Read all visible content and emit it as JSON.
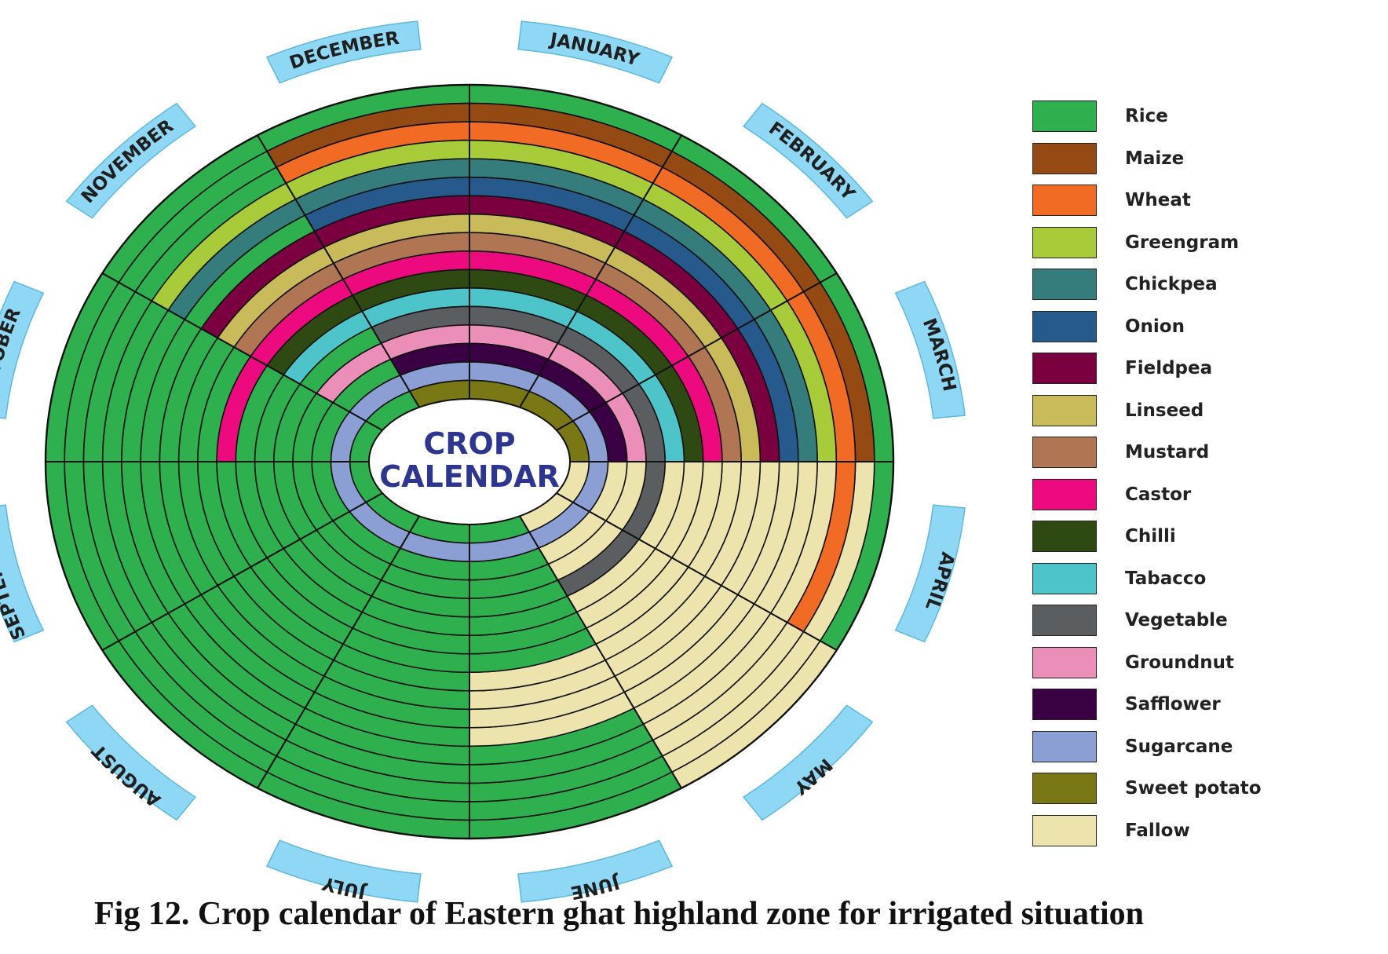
{
  "chart_data": {
    "type": "radial-calendar",
    "title": "Fig 12. Crop calendar of Eastern ghat highland zone for irrigated situation",
    "center_label": [
      "CROP",
      "CALENDAR"
    ],
    "months": [
      "JANUARY",
      "FEBRUARY",
      "MARCH",
      "APRIL",
      "MAY",
      "JUNE",
      "JULY",
      "AUGUST",
      "SEPTEMBER",
      "OCTOBER",
      "NOVEMBER",
      "DECEMBER"
    ],
    "crops": [
      {
        "name": "Rice",
        "color": "#2db04d"
      },
      {
        "name": "Maize",
        "color": "#944a12"
      },
      {
        "name": "Wheat",
        "color": "#f26b25"
      },
      {
        "name": "Greengram",
        "color": "#a8cb3a"
      },
      {
        "name": "Chickpea",
        "color": "#347d7c"
      },
      {
        "name": "Onion",
        "color": "#275a8c"
      },
      {
        "name": "Fieldpea",
        "color": "#7a0040"
      },
      {
        "name": "Linseed",
        "color": "#c9bb5a"
      },
      {
        "name": "Mustard",
        "color": "#b07553"
      },
      {
        "name": "Castor",
        "color": "#ec0a7e"
      },
      {
        "name": "Chilli",
        "color": "#2e4a12"
      },
      {
        "name": "Tabacco",
        "color": "#4cc4c9"
      },
      {
        "name": "Vegetable",
        "color": "#5a5e60"
      },
      {
        "name": "Groundnut",
        "color": "#eb8fb8"
      },
      {
        "name": "Safflower",
        "color": "#3b0044"
      },
      {
        "name": "Sugarcane",
        "color": "#8b9fd4"
      },
      {
        "name": "Sweet potato",
        "color": "#7a7814"
      },
      {
        "name": "Fallow",
        "color": "#ede4ad"
      }
    ],
    "rings_outer_to_inner": [
      [
        "Rice",
        "Rice",
        "Rice",
        "Rice",
        "Fallow",
        "Rice",
        "Rice",
        "Rice",
        "Rice",
        "Rice",
        "Rice",
        "Rice"
      ],
      [
        "Maize",
        "Maize",
        "Maize",
        "Fallow",
        "Fallow",
        "Rice",
        "Rice",
        "Rice",
        "Rice",
        "Rice",
        "Rice",
        "Maize"
      ],
      [
        "Wheat",
        "Wheat",
        "Wheat",
        "Wheat",
        "Fallow",
        "Rice",
        "Rice",
        "Rice",
        "Rice",
        "Rice",
        "Rice",
        "Wheat"
      ],
      [
        "Greengram",
        "Greengram",
        "Greengram",
        "Fallow",
        "Fallow",
        "Rice",
        "Rice",
        "Rice",
        "Rice",
        "Rice",
        "Greengram",
        "Greengram"
      ],
      [
        "Chickpea",
        "Chickpea",
        "Chickpea",
        "Fallow",
        "Fallow",
        "Rice",
        "Rice",
        "Rice",
        "Rice",
        "Rice",
        "Chickpea",
        "Chickpea"
      ],
      [
        "Onion",
        "Onion",
        "Onion",
        "Fallow",
        "Fallow",
        "Fallow",
        "Rice",
        "Rice",
        "Rice",
        "Rice",
        "Rice",
        "Onion"
      ],
      [
        "Fieldpea",
        "Fieldpea",
        "Fieldpea",
        "Fallow",
        "Fallow",
        "Fallow",
        "Rice",
        "Rice",
        "Rice",
        "Rice",
        "Fieldpea",
        "Fieldpea"
      ],
      [
        "Linseed",
        "Linseed",
        "Linseed",
        "Fallow",
        "Fallow",
        "Fallow",
        "Rice",
        "Rice",
        "Rice",
        "Rice",
        "Linseed",
        "Linseed"
      ],
      [
        "Mustard",
        "Mustard",
        "Mustard",
        "Fallow",
        "Fallow",
        "Fallow",
        "Rice",
        "Rice",
        "Rice",
        "Rice",
        "Mustard",
        "Mustard"
      ],
      [
        "Castor",
        "Castor",
        "Castor",
        "Fallow",
        "Fallow",
        "Rice",
        "Rice",
        "Rice",
        "Rice",
        "Castor",
        "Castor",
        "Castor"
      ],
      [
        "Chilli",
        "Chilli",
        "Chilli",
        "Fallow",
        "Fallow",
        "Rice",
        "Rice",
        "Rice",
        "Rice",
        "Rice",
        "Chilli",
        "Chilli"
      ],
      [
        "Tabacco",
        "Tabacco",
        "Tabacco",
        "Fallow",
        "Fallow",
        "Rice",
        "Rice",
        "Rice",
        "Rice",
        "Rice",
        "Tabacco",
        "Tabacco"
      ],
      [
        "Vegetable",
        "Vegetable",
        "Vegetable",
        "Vegetable",
        "Vegetable",
        "Rice",
        "Rice",
        "Rice",
        "Rice",
        "Rice",
        "Rice",
        "Vegetable"
      ],
      [
        "Groundnut",
        "Groundnut",
        "Groundnut",
        "Fallow",
        "Fallow",
        "Rice",
        "Rice",
        "Rice",
        "Rice",
        "Rice",
        "Groundnut",
        "Groundnut"
      ],
      [
        "Safflower",
        "Safflower",
        "Safflower",
        "Fallow",
        "Fallow",
        "Rice",
        "Rice",
        "Rice",
        "Rice",
        "Rice",
        "Rice",
        "Safflower"
      ],
      [
        "Sugarcane",
        "Sugarcane",
        "Sugarcane",
        "Sugarcane",
        "Sugarcane",
        "Sugarcane",
        "Sugarcane",
        "Sugarcane",
        "Sugarcane",
        "Sugarcane",
        "Sugarcane",
        "Sugarcane"
      ],
      [
        "Sweet potato",
        "Sweet potato",
        "Sweet potato",
        "Fallow",
        "Fallow",
        "Rice",
        "Rice",
        "Rice",
        "Rice",
        "Rice",
        "Rice",
        "Sweet potato"
      ]
    ]
  }
}
